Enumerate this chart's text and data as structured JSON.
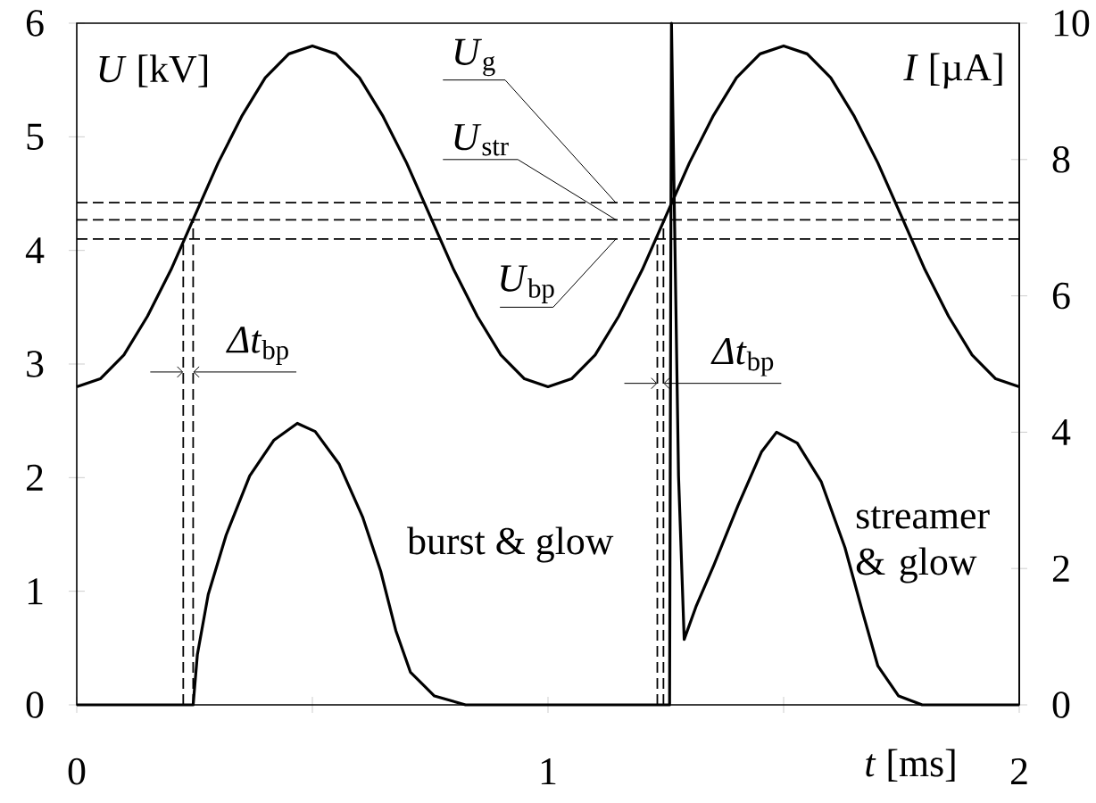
{
  "chart_data": {
    "type": "line",
    "xlabel": "*t* [ms]",
    "ylabel": "*U* [kV]",
    "y2label": "*I* [µA]",
    "annotations": [
      "*Δt*$_{bp}$",
      "*Δt*$_{bp}$",
      "burst & glow",
      "streamer & glow"
    ],
    "xlim": [
      0,
      2
    ],
    "xticks": [
      0,
      {
        "value": 0.5,
        "label": null
      },
      1,
      {
        "value": 1.5,
        "label": null
      },
      2
    ],
    "ylim": [
      0,
      6
    ],
    "yticks": [
      0,
      1,
      2,
      3,
      4,
      5,
      6
    ],
    "y2lim": [
      0,
      10
    ],
    "y2ticks": [
      0,
      2,
      4,
      6,
      8,
      10
    ],
    "line_style": "solid",
    "series": [
      {
        "color": "#000000",
        "x": [
          0,
          0.05,
          0.1,
          0.15,
          0.2,
          0.25,
          0.3,
          0.35,
          0.4,
          0.45,
          0.5,
          0.55,
          0.6,
          0.65,
          0.7,
          0.75,
          0.8,
          0.85,
          0.9,
          0.95,
          1,
          1.05,
          1.1,
          1.15,
          1.2,
          1.25,
          1.3,
          1.35,
          1.4,
          1.45,
          1.5,
          1.55,
          1.6,
          1.65,
          1.7,
          1.75,
          1.8,
          1.85,
          1.9,
          1.95,
          2
        ],
        "values": [
          2.8,
          2.87,
          3.08,
          3.42,
          3.83,
          4.3,
          4.77,
          5.18,
          5.52,
          5.73,
          5.8,
          5.73,
          5.52,
          5.18,
          4.77,
          4.3,
          3.83,
          3.42,
          3.08,
          2.87,
          2.8,
          2.87,
          3.08,
          3.42,
          3.83,
          4.3,
          4.77,
          5.18,
          5.52,
          5.73,
          5.8,
          5.73,
          5.52,
          5.18,
          4.77,
          4.3,
          3.83,
          3.42,
          3.08,
          2.87,
          2.8
        ]
      },
      {
        "axis": "y2",
        "color": "#000000",
        "x": [
          0,
          0.247,
          0.256,
          0.279,
          0.317,
          0.367,
          0.418,
          0.468,
          0.506,
          0.557,
          0.607,
          0.645,
          0.677,
          0.708,
          0.759,
          0.825,
          1.258,
          1.262,
          1.277,
          1.289,
          1.314,
          1.352,
          1.403,
          1.453,
          1.485,
          1.529,
          1.58,
          1.63,
          1.668,
          1.7,
          1.744,
          1.794,
          2
        ],
        "values": [
          0,
          0,
          0.74,
          1.62,
          2.49,
          3.36,
          3.88,
          4.13,
          4.01,
          3.53,
          2.75,
          1.96,
          1.09,
          0.48,
          0.13,
          0,
          0,
          10,
          3.36,
          0.96,
          1.44,
          2.05,
          2.92,
          3.71,
          4.0,
          3.84,
          3.27,
          2.31,
          1.35,
          0.57,
          0.13,
          0,
          0
        ]
      }
    ],
    "ref_lines": [
      {
        "axis": "y",
        "value": 4.42,
        "label": "*U*$_{g}$",
        "color": "#000000",
        "line_style": "dashed"
      },
      {
        "axis": "y",
        "value": 4.27,
        "label": "*U*$_{str}$",
        "color": "#000000",
        "line_style": "dashed"
      },
      {
        "axis": "y",
        "value": 4.1,
        "label": "*U*$_{bp}$",
        "color": "#000000",
        "line_style": "dashed"
      },
      {
        "axis": "x",
        "value": 0.226,
        "color": "#000000",
        "line_style": "dashed"
      },
      {
        "axis": "x",
        "value": 0.247,
        "color": "#000000",
        "line_style": "dashed"
      },
      {
        "axis": "x",
        "value": 1.232,
        "color": "#000000",
        "line_style": "dashed"
      },
      {
        "axis": "x",
        "value": 1.245,
        "color": "#000000",
        "line_style": "dashed"
      }
    ]
  }
}
